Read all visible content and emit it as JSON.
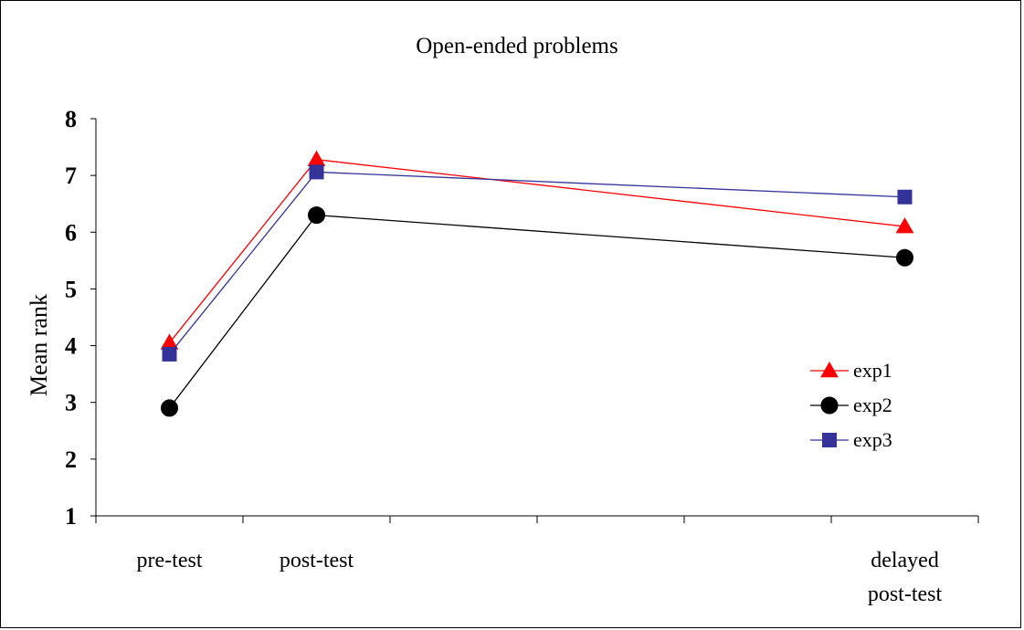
{
  "chart_data": {
    "type": "line",
    "title": "Open-ended problems",
    "xlabel": "",
    "ylabel": "Mean rank",
    "ylim": [
      1,
      8
    ],
    "yticks": [
      "1",
      "2",
      "3",
      "4",
      "5",
      "6",
      "7",
      "8"
    ],
    "categories": [
      [
        "pre-test"
      ],
      [
        "post-test"
      ],
      [],
      [],
      [],
      [
        "delayed",
        "post-test"
      ]
    ],
    "grid": false,
    "legend_position": "right",
    "series": [
      {
        "name": "exp1",
        "color": "#ff0000",
        "marker": "triangle",
        "values": [
          4.05,
          7.28,
          null,
          null,
          null,
          6.1
        ]
      },
      {
        "name": "exp2",
        "color": "#000000",
        "marker": "circle",
        "values": [
          2.9,
          6.3,
          null,
          null,
          null,
          5.55
        ]
      },
      {
        "name": "exp3",
        "color": "#333399",
        "marker": "square",
        "values": [
          3.85,
          7.06,
          null,
          null,
          null,
          6.62
        ]
      }
    ]
  }
}
